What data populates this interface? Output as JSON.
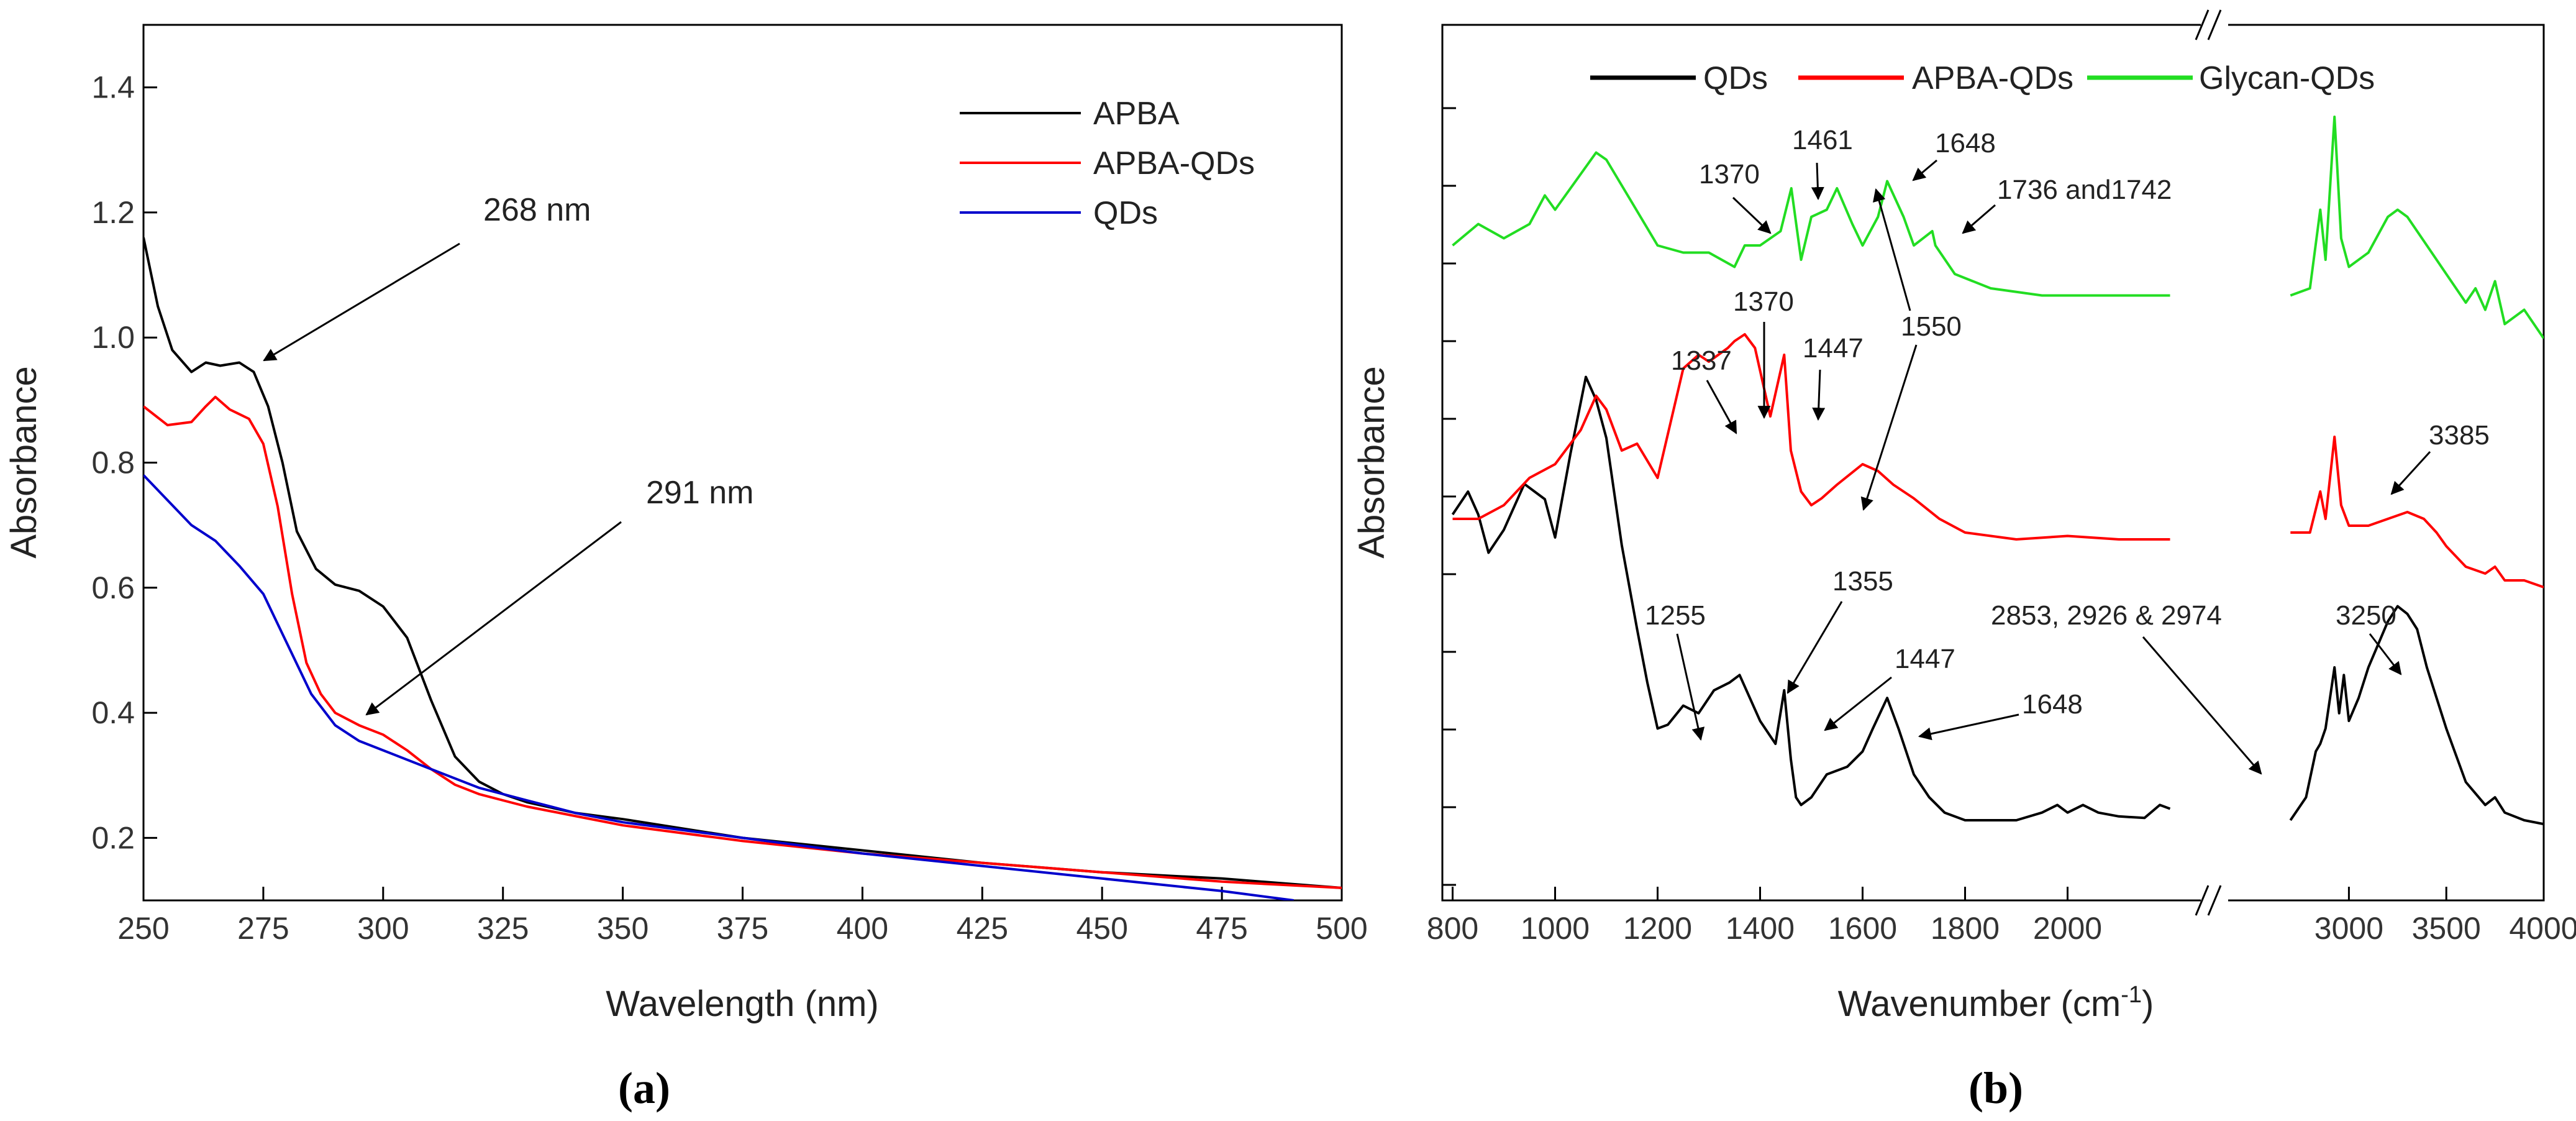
{
  "panels": {
    "a": "(a)",
    "b": "(b)"
  },
  "chart_data": [
    {
      "type": "line",
      "xlabel": "Wavelength (nm)",
      "ylabel": "Absorbance",
      "xlim": [
        250,
        500
      ],
      "ylim": [
        0.1,
        1.5
      ],
      "xticks": [
        250,
        275,
        300,
        325,
        350,
        375,
        400,
        425,
        450,
        475,
        500
      ],
      "yticks": [
        0.2,
        0.4,
        0.6,
        0.8,
        1.0,
        1.2,
        1.4
      ],
      "ytick_labels": [
        "0.2",
        "0.4",
        "0.6",
        "0.8",
        "1.0",
        "1.2",
        "1.4"
      ],
      "legend_placement": "top-right",
      "series": [
        {
          "name": "APBA",
          "color": "#000000",
          "x": [
            250,
            253,
            256,
            260,
            263,
            266,
            270,
            273,
            276,
            279,
            282,
            286,
            290,
            295,
            300,
            305,
            310,
            315,
            320,
            325,
            330,
            340,
            350,
            375,
            400,
            425,
            450,
            475,
            500
          ],
          "y": [
            1.16,
            1.05,
            0.98,
            0.945,
            0.96,
            0.955,
            0.96,
            0.945,
            0.89,
            0.8,
            0.69,
            0.63,
            0.605,
            0.595,
            0.57,
            0.52,
            0.42,
            0.33,
            0.29,
            0.27,
            0.257,
            0.24,
            0.23,
            0.2,
            0.18,
            0.16,
            0.145,
            0.135,
            0.12
          ]
        },
        {
          "name": "APBA-QDs",
          "color": "#ff0000",
          "x": [
            250,
            255,
            260,
            263,
            265,
            268,
            272,
            275,
            278,
            281,
            284,
            287,
            290,
            295,
            300,
            305,
            310,
            315,
            320,
            325,
            330,
            340,
            350,
            375,
            400,
            425,
            450,
            475,
            500
          ],
          "y": [
            0.89,
            0.86,
            0.865,
            0.89,
            0.905,
            0.885,
            0.87,
            0.83,
            0.73,
            0.59,
            0.48,
            0.43,
            0.4,
            0.38,
            0.365,
            0.34,
            0.31,
            0.285,
            0.27,
            0.26,
            0.25,
            0.235,
            0.22,
            0.195,
            0.175,
            0.16,
            0.145,
            0.13,
            0.12
          ]
        },
        {
          "name": "QDs",
          "color": "#0000cc",
          "x": [
            250,
            255,
            260,
            265,
            270,
            275,
            280,
            285,
            290,
            295,
            300,
            310,
            320,
            330,
            340,
            350,
            375,
            400,
            425,
            450,
            475,
            490
          ],
          "y": [
            0.78,
            0.74,
            0.7,
            0.675,
            0.635,
            0.59,
            0.51,
            0.43,
            0.38,
            0.355,
            0.34,
            0.31,
            0.28,
            0.26,
            0.24,
            0.225,
            0.2,
            0.175,
            0.155,
            0.135,
            0.115,
            0.1
          ]
        }
      ],
      "annotations": [
        {
          "text": "268 nm",
          "x": 268,
          "y": 0.955
        },
        {
          "text": "291 nm",
          "x": 291,
          "y": 0.38
        }
      ]
    },
    {
      "type": "line",
      "xlabel": "Wavenumber (cm",
      "xlabel_sup": "-1",
      "xlabel_end": ")",
      "ylabel": "Absorbance",
      "x_broken": true,
      "xlim_left": [
        780,
        2260
      ],
      "xlim_right": [
        2380,
        4000
      ],
      "xticks_left": [
        800,
        1000,
        1200,
        1400,
        1600,
        1800,
        2000
      ],
      "xticks_right": [
        3000,
        3500,
        4000
      ],
      "legend_placement": "top",
      "series": [
        {
          "name": "QDs",
          "color": "#000000",
          "x_left": [
            800,
            830,
            850,
            870,
            900,
            940,
            960,
            980,
            1000,
            1030,
            1060,
            1080,
            1100,
            1130,
            1160,
            1180,
            1200,
            1220,
            1250,
            1280,
            1310,
            1340,
            1360,
            1380,
            1400,
            1420,
            1430,
            1447,
            1460,
            1470,
            1480,
            1500,
            1530,
            1570,
            1600,
            1620,
            1648,
            1670,
            1700,
            1730,
            1760,
            1800,
            1900,
            1950,
            1980,
            2000,
            2030,
            2060,
            2100,
            2150,
            2180,
            2200
          ],
          "y_left": [
            0.4,
            0.43,
            0.4,
            0.35,
            0.38,
            0.44,
            0.43,
            0.42,
            0.37,
            0.48,
            0.58,
            0.55,
            0.5,
            0.36,
            0.25,
            0.18,
            0.12,
            0.125,
            0.15,
            0.14,
            0.17,
            0.18,
            0.19,
            0.16,
            0.13,
            0.11,
            0.1,
            0.17,
            0.08,
            0.03,
            0.02,
            0.03,
            0.06,
            0.07,
            0.09,
            0.12,
            0.16,
            0.12,
            0.06,
            0.03,
            0.01,
            0.0,
            0.0,
            0.01,
            0.02,
            0.01,
            0.02,
            0.01,
            0.005,
            0.003,
            0.02,
            0.015
          ],
          "x_right": [
            2700,
            2780,
            2830,
            2853,
            2880,
            2926,
            2950,
            2974,
            3000,
            3050,
            3100,
            3200,
            3250,
            3300,
            3350,
            3400,
            3500,
            3600,
            3700,
            3750,
            3800,
            3900,
            4000
          ],
          "y_right": [
            0.0,
            0.03,
            0.09,
            0.1,
            0.12,
            0.2,
            0.14,
            0.19,
            0.13,
            0.16,
            0.2,
            0.26,
            0.28,
            0.27,
            0.25,
            0.2,
            0.12,
            0.05,
            0.02,
            0.03,
            0.01,
            0.0,
            -0.005
          ]
        },
        {
          "name": "APBA-QDs",
          "color": "#ff0000",
          "x_left": [
            800,
            850,
            900,
            950,
            1000,
            1050,
            1080,
            1100,
            1130,
            1160,
            1200,
            1250,
            1280,
            1300,
            1337,
            1350,
            1370,
            1390,
            1420,
            1447,
            1460,
            1480,
            1500,
            1520,
            1550,
            1600,
            1630,
            1660,
            1700,
            1750,
            1800,
            1900,
            2000,
            2100,
            2200
          ],
          "y_left": [
            0.0,
            0.0,
            0.02,
            0.06,
            0.08,
            0.13,
            0.18,
            0.16,
            0.1,
            0.11,
            0.06,
            0.22,
            0.24,
            0.23,
            0.25,
            0.26,
            0.27,
            0.25,
            0.15,
            0.24,
            0.1,
            0.04,
            0.02,
            0.03,
            0.05,
            0.08,
            0.07,
            0.05,
            0.03,
            0.0,
            -0.02,
            -0.03,
            -0.025,
            -0.03,
            -0.03
          ],
          "x_right": [
            2700,
            2800,
            2853,
            2880,
            2926,
            2960,
            3000,
            3100,
            3200,
            3300,
            3385,
            3450,
            3500,
            3600,
            3700,
            3750,
            3800,
            3900,
            4000
          ],
          "y_right": [
            -0.02,
            -0.02,
            0.04,
            0.0,
            0.12,
            0.02,
            -0.01,
            -0.01,
            0.0,
            0.01,
            0.0,
            -0.02,
            -0.04,
            -0.07,
            -0.08,
            -0.07,
            -0.09,
            -0.09,
            -0.1
          ]
        },
        {
          "name": "Glycan-QDs",
          "color": "#22dd22",
          "x_left": [
            800,
            850,
            900,
            950,
            980,
            1000,
            1050,
            1080,
            1100,
            1150,
            1200,
            1250,
            1300,
            1350,
            1370,
            1400,
            1440,
            1461,
            1480,
            1500,
            1530,
            1550,
            1580,
            1600,
            1630,
            1648,
            1680,
            1700,
            1736,
            1742,
            1780,
            1850,
            1950,
            2050,
            2150,
            2200
          ],
          "y_left": [
            0.0,
            0.03,
            0.01,
            0.03,
            0.07,
            0.05,
            0.1,
            0.13,
            0.12,
            0.06,
            0.0,
            -0.01,
            -0.01,
            -0.03,
            0.0,
            0.0,
            0.02,
            0.08,
            -0.02,
            0.04,
            0.05,
            0.08,
            0.03,
            0.0,
            0.04,
            0.09,
            0.04,
            0.0,
            0.02,
            0.0,
            -0.04,
            -0.06,
            -0.07,
            -0.07,
            -0.07,
            -0.07
          ],
          "x_right": [
            2700,
            2800,
            2853,
            2880,
            2926,
            2960,
            3000,
            3100,
            3200,
            3250,
            3300,
            3400,
            3500,
            3600,
            3650,
            3700,
            3750,
            3800,
            3900,
            4000
          ],
          "y_right": [
            -0.07,
            -0.06,
            0.05,
            -0.02,
            0.18,
            0.01,
            -0.03,
            -0.01,
            0.04,
            0.05,
            0.04,
            0.0,
            -0.04,
            -0.08,
            -0.06,
            -0.09,
            -0.05,
            -0.11,
            -0.09,
            -0.13
          ]
        }
      ],
      "annotations": [
        "1370",
        "1461",
        "1648",
        "1736 and1742",
        "1550",
        "1337",
        "1370",
        "1447",
        "3385",
        "1255",
        "1355",
        "1447",
        "1648",
        "2853, 2926 & 2974",
        "3250"
      ]
    }
  ]
}
